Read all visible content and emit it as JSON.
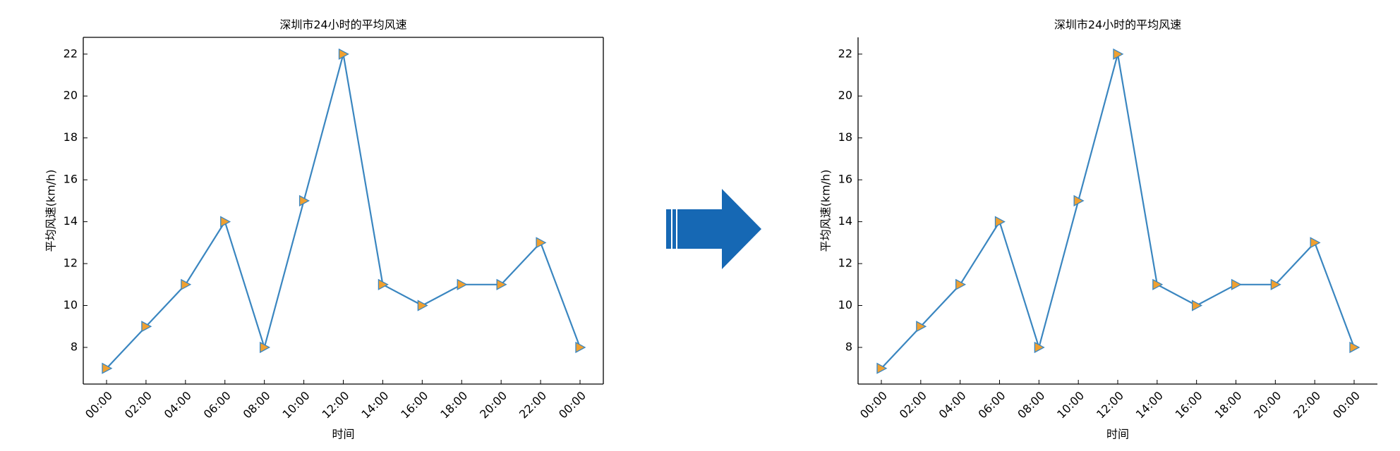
{
  "chart_data": [
    {
      "type": "line",
      "title": "深圳市24小时的平均风速",
      "x_label": "时间",
      "y_label": "平均风速(km/h)",
      "categories": [
        "00:00",
        "02:00",
        "04:00",
        "06:00",
        "08:00",
        "10:00",
        "12:00",
        "14:00",
        "16:00",
        "18:00",
        "20:00",
        "22:00",
        "00:00"
      ],
      "series": [
        {
          "color": "#3a86c0",
          "marker_color": "#f0a030",
          "values": [
            7,
            9,
            11,
            14,
            8,
            15,
            22,
            11,
            10,
            11,
            11,
            13,
            8
          ]
        }
      ],
      "ylim": [
        6.25,
        22.8
      ],
      "yticks": [
        8,
        10,
        12,
        14,
        16,
        18,
        20,
        22
      ],
      "spines": [
        "left",
        "right",
        "top",
        "bottom"
      ]
    },
    {
      "type": "line",
      "title": "深圳市24小时的平均风速",
      "x_label": "时间",
      "y_label": "平均风速(km/h)",
      "categories": [
        "00:00",
        "02:00",
        "04:00",
        "06:00",
        "08:00",
        "10:00",
        "12:00",
        "14:00",
        "16:00",
        "18:00",
        "20:00",
        "22:00",
        "00:00"
      ],
      "series": [
        {
          "color": "#3a86c0",
          "marker_color": "#f0a030",
          "values": [
            7,
            9,
            11,
            14,
            8,
            15,
            22,
            11,
            10,
            11,
            11,
            13,
            8
          ]
        }
      ],
      "ylim": [
        6.25,
        22.8
      ],
      "yticks": [
        8,
        10,
        12,
        14,
        16,
        18,
        20,
        22
      ],
      "spines": [
        "left",
        "bottom"
      ]
    }
  ]
}
